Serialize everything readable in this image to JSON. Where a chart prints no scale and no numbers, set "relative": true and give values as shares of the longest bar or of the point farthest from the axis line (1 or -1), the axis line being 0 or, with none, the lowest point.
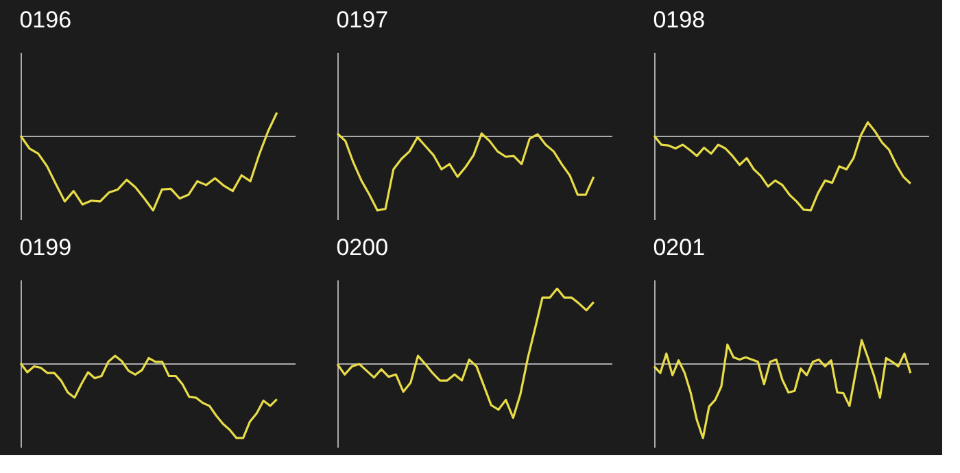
{
  "chart_data": [
    {
      "type": "line",
      "title": "0196",
      "relative": true,
      "categories": [
        null,
        null,
        null,
        null,
        null,
        null,
        null,
        null,
        null,
        null,
        null,
        null,
        null,
        null,
        null,
        null,
        null,
        null,
        null,
        null,
        null,
        null,
        null,
        null,
        null,
        null,
        null,
        null,
        null,
        null
      ],
      "series": [
        {
          "color": "#e8dc48",
          "values": [
            0,
            -0.17,
            -0.24,
            -0.41,
            -0.65,
            -0.88,
            -0.74,
            -0.92,
            -0.87,
            -0.88,
            -0.76,
            -0.72,
            -0.59,
            -0.69,
            -0.84,
            -1,
            -0.72,
            -0.71,
            -0.84,
            -0.79,
            -0.61,
            -0.66,
            -0.57,
            -0.67,
            -0.74,
            -0.53,
            -0.61,
            -0.25,
            0.06,
            0.31
          ]
        }
      ]
    },
    {
      "type": "line",
      "title": "0197",
      "relative": true,
      "categories": [
        null,
        null,
        null,
        null,
        null,
        null,
        null,
        null,
        null,
        null,
        null,
        null,
        null,
        null,
        null,
        null,
        null,
        null,
        null,
        null,
        null,
        null,
        null,
        null,
        null,
        null,
        null,
        null,
        null,
        null,
        null,
        null,
        null
      ],
      "series": [
        {
          "color": "#e8dc48",
          "values": [
            0.03,
            -0.07,
            -0.36,
            -0.6,
            -0.79,
            -1,
            -0.98,
            -0.45,
            -0.31,
            -0.21,
            -0.02,
            -0.14,
            -0.26,
            -0.45,
            -0.38,
            -0.55,
            -0.42,
            -0.26,
            0.03,
            -0.07,
            -0.21,
            -0.28,
            -0.27,
            -0.38,
            -0.04,
            0.02,
            -0.12,
            -0.21,
            -0.38,
            -0.53,
            -0.79,
            -0.79,
            -0.55
          ]
        }
      ]
    },
    {
      "type": "line",
      "title": "0198",
      "relative": true,
      "categories": [
        null,
        null,
        null,
        null,
        null,
        null,
        null,
        null,
        null,
        null,
        null,
        null,
        null,
        null,
        null,
        null,
        null,
        null,
        null,
        null,
        null,
        null,
        null,
        null,
        null,
        null,
        null,
        null,
        null,
        null,
        null,
        null,
        null,
        null,
        null,
        null,
        null
      ],
      "series": [
        {
          "color": "#e8dc48",
          "values": [
            0,
            -0.12,
            -0.13,
            -0.17,
            -0.12,
            -0.19,
            -0.27,
            -0.16,
            -0.24,
            -0.12,
            -0.17,
            -0.27,
            -0.39,
            -0.3,
            -0.45,
            -0.54,
            -0.68,
            -0.6,
            -0.66,
            -0.79,
            -0.88,
            -0.99,
            -1,
            -0.77,
            -0.6,
            -0.63,
            -0.41,
            -0.45,
            -0.3,
            0,
            0.18,
            0.06,
            -0.09,
            -0.19,
            -0.39,
            -0.55,
            -0.64
          ]
        }
      ]
    },
    {
      "type": "line",
      "title": "0199",
      "relative": true,
      "categories": [
        null,
        null,
        null,
        null,
        null,
        null,
        null,
        null,
        null,
        null,
        null,
        null,
        null,
        null,
        null,
        null,
        null,
        null,
        null,
        null,
        null,
        null,
        null,
        null,
        null,
        null,
        null,
        null,
        null,
        null,
        null,
        null,
        null,
        null,
        null,
        null,
        null,
        null,
        null
      ],
      "series": [
        {
          "color": "#e8dc48",
          "values": [
            0,
            -0.12,
            -0.04,
            -0.06,
            -0.13,
            -0.13,
            -0.23,
            -0.39,
            -0.46,
            -0.28,
            -0.12,
            -0.2,
            -0.17,
            0.02,
            0.1,
            0.03,
            -0.1,
            -0.15,
            -0.09,
            0.07,
            0.02,
            0.02,
            -0.17,
            -0.17,
            -0.28,
            -0.45,
            -0.46,
            -0.53,
            -0.57,
            -0.7,
            -0.81,
            -0.89,
            -1,
            -1,
            -0.78,
            -0.67,
            -0.5,
            -0.57,
            -0.48
          ]
        }
      ]
    },
    {
      "type": "line",
      "title": "0200",
      "relative": true,
      "categories": [
        null,
        null,
        null,
        null,
        null,
        null,
        null,
        null,
        null,
        null,
        null,
        null,
        null,
        null,
        null,
        null,
        null,
        null,
        null,
        null,
        null,
        null,
        null,
        null,
        null,
        null,
        null,
        null,
        null,
        null,
        null,
        null,
        null,
        null,
        null,
        null
      ],
      "series": [
        {
          "color": "#e8dc48",
          "values": [
            -0.01,
            -0.15,
            -0.04,
            -0.01,
            -0.1,
            -0.19,
            -0.08,
            -0.18,
            -0.15,
            -0.38,
            -0.26,
            0.1,
            -0.01,
            -0.13,
            -0.23,
            -0.23,
            -0.15,
            -0.23,
            0.05,
            -0.04,
            -0.3,
            -0.56,
            -0.62,
            -0.49,
            -0.73,
            -0.41,
            0.07,
            0.47,
            0.88,
            0.88,
            1,
            0.88,
            0.88,
            0.8,
            0.71,
            0.82
          ]
        }
      ]
    },
    {
      "type": "line",
      "title": "0201",
      "relative": true,
      "categories": [
        null,
        null,
        null,
        null,
        null,
        null,
        null,
        null,
        null,
        null,
        null,
        null,
        null,
        null,
        null,
        null,
        null,
        null,
        null,
        null,
        null,
        null,
        null,
        null,
        null,
        null,
        null,
        null,
        null,
        null,
        null,
        null,
        null,
        null,
        null,
        null,
        null,
        null,
        null,
        null,
        null,
        null,
        null
      ],
      "series": [
        {
          "color": "#e8dc48",
          "values": [
            -0.04,
            -0.13,
            0.13,
            -0.16,
            0.04,
            -0.13,
            -0.4,
            -0.76,
            -1,
            -0.58,
            -0.49,
            -0.31,
            0.25,
            0.08,
            0.05,
            0.08,
            0.05,
            0.02,
            -0.28,
            0.02,
            0.05,
            -0.22,
            -0.39,
            -0.37,
            -0.07,
            -0.16,
            0.02,
            0.05,
            -0.04,
            0.04,
            -0.39,
            -0.4,
            -0.57,
            -0.13,
            0.31,
            0.08,
            -0.16,
            -0.46,
            0.07,
            0.02,
            -0.04,
            0.13,
            -0.13
          ]
        }
      ]
    }
  ]
}
